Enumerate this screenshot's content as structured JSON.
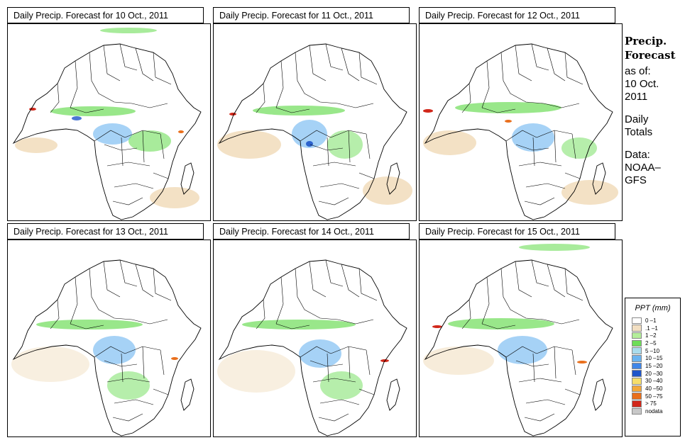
{
  "panels": [
    {
      "title": "Daily Precip. Forecast for  10 Oct., 2011"
    },
    {
      "title": "Daily Precip. Forecast for  11 Oct., 2011"
    },
    {
      "title": "Daily Precip. Forecast for  12 Oct., 2011"
    },
    {
      "title": "Daily Precip. Forecast for  13 Oct., 2011"
    },
    {
      "title": "Daily Precip. Forecast for  14 Oct., 2011"
    },
    {
      "title": "Daily Precip. Forecast for  15 Oct., 2011"
    }
  ],
  "sidebar": {
    "title_line1": "Precip.",
    "title_line2": "Forecast",
    "asof": "as of:",
    "date_line1": "10 Oct.",
    "date_line2": "2011",
    "totals_line1": "Daily",
    "totals_line2": "Totals",
    "data_line1": "Data:",
    "data_line2": "NOAA–",
    "data_line3": "GFS"
  },
  "legend": {
    "title": "PPT (mm)",
    "items": [
      {
        "label": "0 –1",
        "color": "#ffffff"
      },
      {
        "label": ".1 –1",
        "color": "#f2dfc2"
      },
      {
        "label": "1 –2",
        "color": "#b4ee9a"
      },
      {
        "label": "2 –5",
        "color": "#6edd58"
      },
      {
        "label": "5 –10",
        "color": "#a9dcec"
      },
      {
        "label": "10 –15",
        "color": "#6ab4f0"
      },
      {
        "label": "15 –20",
        "color": "#3f86e8"
      },
      {
        "label": "20 –30",
        "color": "#1f55c9"
      },
      {
        "label": "30 –40",
        "color": "#f6de6a"
      },
      {
        "label": "40 –50",
        "color": "#f3a83a"
      },
      {
        "label": "50 –75",
        "color": "#e96f1c"
      },
      {
        "label": "> 75",
        "color": "#d1271a"
      },
      {
        "label": "nodata",
        "color": "#c8c8c8"
      }
    ]
  }
}
